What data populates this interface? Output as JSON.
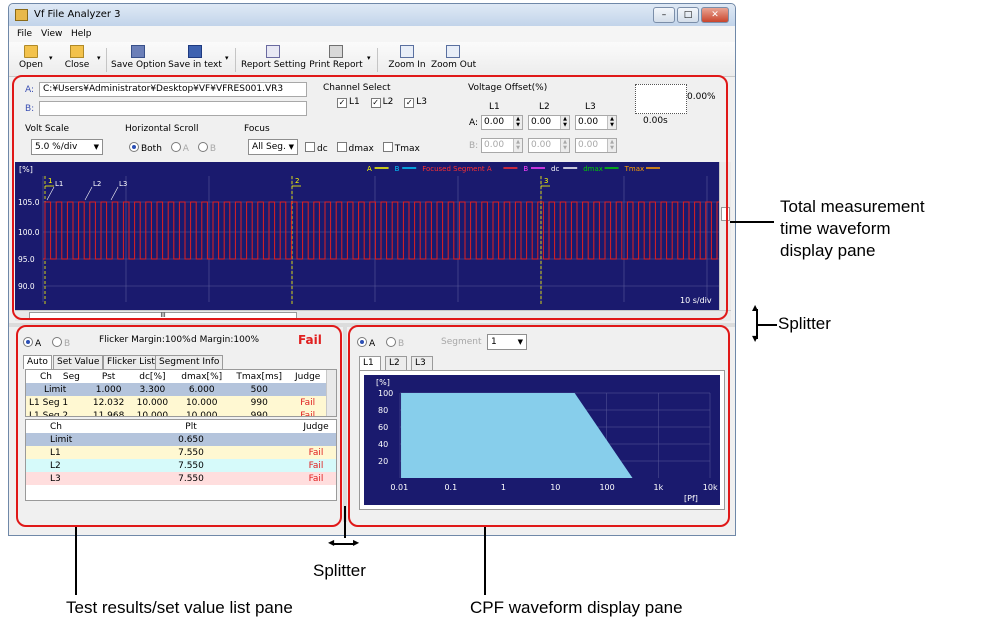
{
  "window": {
    "title": "Vf File Analyzer 3",
    "btn_min": "–",
    "btn_max": "□",
    "btn_close": "✕"
  },
  "menu": [
    "File",
    "View",
    "Help"
  ],
  "toolbar": {
    "open": "Open",
    "close": "Close",
    "save_option": "Save Option",
    "save_text": "Save in text",
    "report_setting": "Report Setting",
    "print_report": "Print Report",
    "zoom_in": "Zoom In",
    "zoom_out": "Zoom Out",
    "dropdown_glyph": "▾"
  },
  "files": {
    "a_label": "A:",
    "a_path": "C:¥Users¥Administrator¥Desktop¥VF¥VFRES001.VR3",
    "b_label": "B:",
    "b_path": ""
  },
  "channel_select": {
    "title": "Channel Select",
    "channels": [
      "L1",
      "L2",
      "L3"
    ],
    "checked_glyph": "✓"
  },
  "voltage_offset": {
    "title": "Voltage Offset(%)",
    "columns": [
      "L1",
      "L2",
      "L3"
    ],
    "row_a_label": "A:",
    "row_b_label": "B:",
    "row_a": [
      "0.00",
      "0.00",
      "0.00"
    ],
    "row_b": [
      "0.00",
      "0.00",
      "0.00"
    ]
  },
  "scale_box": {
    "value": "0.00%",
    "time": "0.00s"
  },
  "volt_scale": {
    "title": "Volt Scale",
    "value": "5.0 %/div"
  },
  "hscroll": {
    "title": "Horizontal Scroll",
    "options": [
      "Both",
      "A",
      "B"
    ],
    "selected": "Both"
  },
  "focus": {
    "title": "Focus",
    "value": "All Seg.",
    "checks": [
      "dc",
      "dmax",
      "Tmax"
    ]
  },
  "waveform": {
    "unit": "[%]",
    "y_ticks": [
      "105.0",
      "100.0",
      "95.0",
      "90.0"
    ],
    "time_div": "10 s/div",
    "channel_markers": [
      "L1",
      "L2",
      "L3"
    ],
    "segment_markers": [
      "1",
      "2",
      "3"
    ],
    "legend": [
      {
        "label": "A",
        "color": "#ffff00"
      },
      {
        "label": "B",
        "color": "#00c8ff"
      },
      {
        "label": "Focused Segment A",
        "color": "#ff3030"
      },
      {
        "label": "B",
        "color": "#ff40ff"
      },
      {
        "label": "dc",
        "color": "#ffffff"
      },
      {
        "label": "dmax",
        "color": "#00d000"
      },
      {
        "label": "Tmax",
        "color": "#ffa000"
      }
    ],
    "scroll_thumb": "III"
  },
  "results": {
    "radio_a": "A",
    "radio_b": "B",
    "flicker_margin": "Flicker Margin:100%",
    "d_margin": "d Margin:100%",
    "verdict": "Fail",
    "tabs": [
      "Auto",
      "Set Value",
      "Flicker List",
      "Segment Info"
    ],
    "pst_headers": [
      "Ch",
      "Seg",
      "Pst",
      "dc[%]",
      "dmax[%]",
      "Tmax[ms]",
      "Judge"
    ],
    "pst_rows": [
      {
        "ch": "Limit",
        "seg": "",
        "pst": "1.000",
        "dc": "3.300",
        "dmax": "6.000",
        "tmax": "500",
        "judge": ""
      },
      {
        "ch": "L1 Seg 1",
        "seg": "",
        "pst": "12.032",
        "dc": "10.000",
        "dmax": "10.000",
        "tmax": "990",
        "judge": "Fail"
      },
      {
        "ch": "L1 Seg 2",
        "seg": "",
        "pst": "11.968",
        "dc": "10.000",
        "dmax": "10.000",
        "tmax": "990",
        "judge": "Fail"
      }
    ],
    "plt_headers": [
      "Ch",
      "Plt",
      "Judge"
    ],
    "plt_rows": [
      {
        "ch": "Limit",
        "plt": "0.650",
        "judge": ""
      },
      {
        "ch": "L1",
        "plt": "7.550",
        "judge": "Fail"
      },
      {
        "ch": "L2",
        "plt": "7.550",
        "judge": "Fail"
      },
      {
        "ch": "L3",
        "plt": "7.550",
        "judge": "Fail"
      }
    ]
  },
  "cpf": {
    "radio_a": "A",
    "radio_b": "B",
    "segment_label": "Segment",
    "segment_value": "1",
    "tabs": [
      "L1",
      "L2",
      "L3"
    ],
    "unit_y": "[%]",
    "y_ticks": [
      "100",
      "80",
      "60",
      "40",
      "20"
    ],
    "x_ticks": [
      "0.01",
      "0.1",
      "1",
      "10",
      "100",
      "1k",
      "10k"
    ],
    "unit_x": "[Pf]",
    "fill_color": "#87ceeb"
  },
  "annotations": {
    "total_pane": [
      "Total measurement",
      "time waveform",
      "display pane"
    ],
    "splitter_right": "Splitter",
    "splitter_bottom": "Splitter",
    "results_pane": "Test results/set value list pane",
    "cpf_pane": "CPF waveform display pane"
  }
}
